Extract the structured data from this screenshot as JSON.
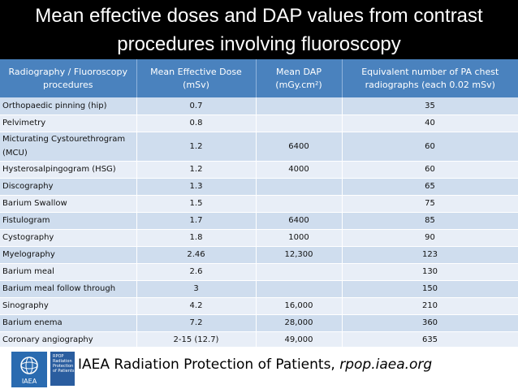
{
  "title": {
    "line1": "Mean effective doses and DAP values from contrast",
    "line2": "procedures involving fluoroscopy"
  },
  "table": {
    "headers": [
      "Radiography / Fluoroscopy procedures",
      "Mean Effective Dose (mSv)",
      "Mean DAP (mGy.cm²)",
      "Equivalent number of PA chest radiographs (each 0.02 mSv)"
    ],
    "rows": [
      {
        "procedure": "Orthopaedic pinning (hip)",
        "dose": "0.7",
        "dap": "",
        "equiv": "35"
      },
      {
        "procedure": "Pelvimetry",
        "dose": "0.8",
        "dap": "",
        "equiv": "40"
      },
      {
        "procedure": "Micturating Cystourethrogram (MCU)",
        "dose": "1.2",
        "dap": "6400",
        "equiv": "60"
      },
      {
        "procedure": "Hysterosalpingogram (HSG)",
        "dose": "1.2",
        "dap": "4000",
        "equiv": "60"
      },
      {
        "procedure": "Discography",
        "dose": "1.3",
        "dap": "",
        "equiv": "65"
      },
      {
        "procedure": "Barium Swallow",
        "dose": "1.5",
        "dap": "",
        "equiv": "75"
      },
      {
        "procedure": "Fistulogram",
        "dose": "1.7",
        "dap": "6400",
        "equiv": "85"
      },
      {
        "procedure": "Cystography",
        "dose": "1.8",
        "dap": "1000",
        "equiv": "90"
      },
      {
        "procedure": "Myelography",
        "dose": "2.46",
        "dap": "12,300",
        "equiv": "123"
      },
      {
        "procedure": "Barium meal",
        "dose": "2.6",
        "dap": "",
        "equiv": "130"
      },
      {
        "procedure": "Barium meal follow through",
        "dose": "3",
        "dap": "",
        "equiv": "150"
      },
      {
        "procedure": "Sinography",
        "dose": "4.2",
        "dap": "16,000",
        "equiv": "210"
      },
      {
        "procedure": "Barium enema",
        "dose": "7.2",
        "dap": "28,000",
        "equiv": "360"
      },
      {
        "procedure": "Coronary angiography",
        "dose": "2-15 (12.7)",
        "dap": "49,000",
        "equiv": "635"
      }
    ]
  },
  "footer": {
    "logo_text": "IAEA",
    "rpop_text": "RPOP Radiation Protection of Patients",
    "credit_prefix": "IAEA Radiation Protection of Patients, ",
    "credit_site": "rpop.iaea.org"
  },
  "colors": {
    "header_bg": "#4a82be",
    "row_dark": "#cfddee",
    "row_light": "#e8eef7",
    "title_bg": "#000000",
    "iaea_blue": "#2a6bb0"
  },
  "icons": [
    "iaea-logo",
    "rpop-logo"
  ]
}
